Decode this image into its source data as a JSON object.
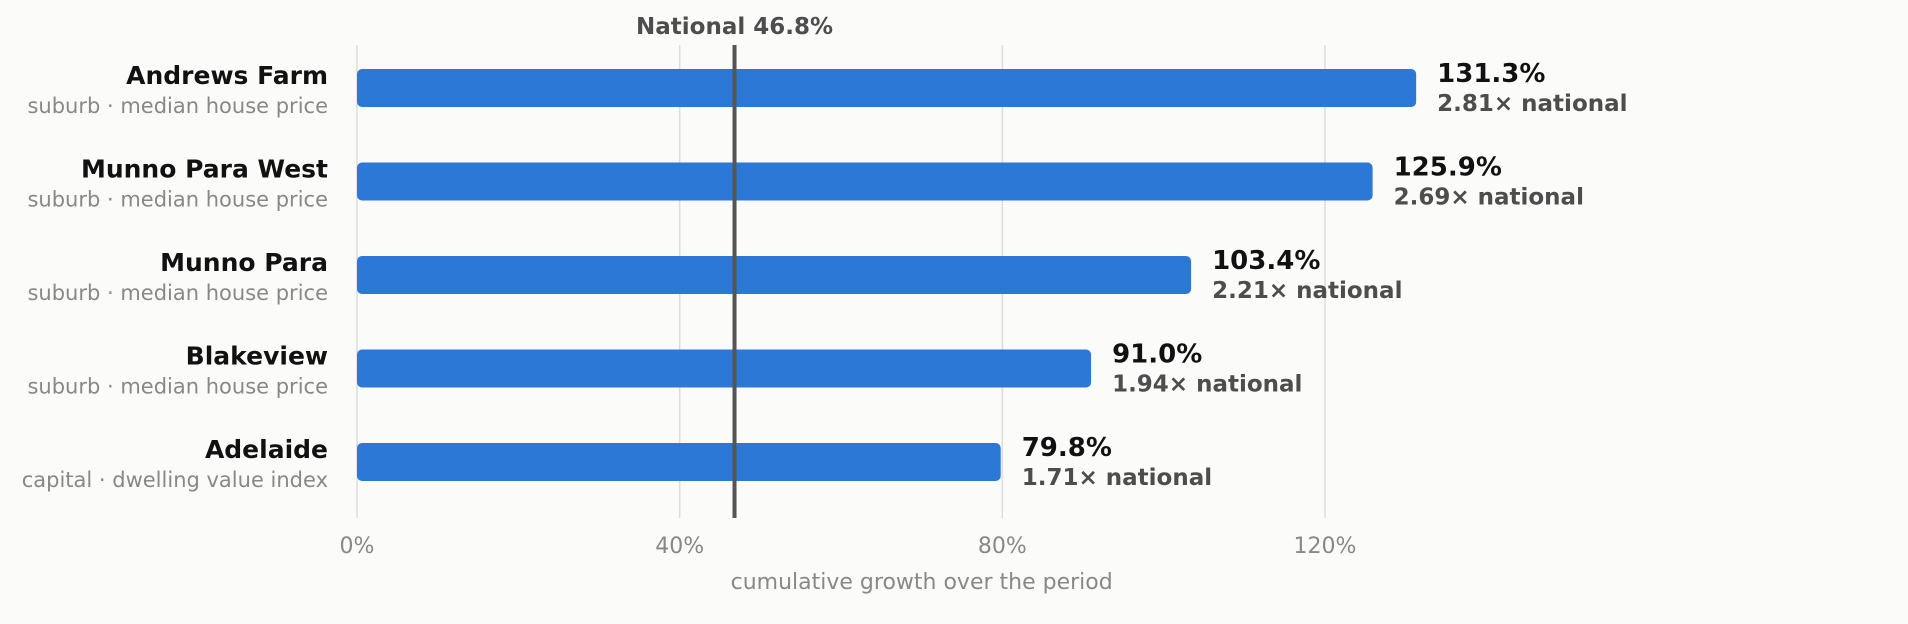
{
  "chart_data": {
    "type": "bar",
    "orientation": "horizontal",
    "categories": [
      "Andrews Farm",
      "Munno Para West",
      "Munno Para",
      "Blakeview",
      "Adelaide"
    ],
    "subtitles": [
      "suburb · median house price",
      "suburb · median house price",
      "suburb · median house price",
      "suburb · median house price",
      "capital · dwelling value index"
    ],
    "values": [
      131.3,
      125.9,
      103.4,
      91.0,
      79.8
    ],
    "value_labels": [
      "131.3%",
      "125.9%",
      "103.4%",
      "91.0%",
      "79.8%"
    ],
    "multiple_labels": [
      "2.81× national",
      "2.69× national",
      "2.21× national",
      "1.94× national",
      "1.71× national"
    ],
    "reference": {
      "label": "National 46.8%",
      "value": 46.8
    },
    "xlabel": "cumulative growth over the period",
    "xlim": [
      0,
      140
    ],
    "xticks": [
      0,
      40,
      80,
      120
    ],
    "xtick_labels": [
      "0%",
      "40%",
      "80%",
      "120%"
    ],
    "grid": true,
    "legend": "none",
    "colors": {
      "bar": "#2b78d6",
      "reference_line": "#555555",
      "grid": "#dddddd",
      "muted_text": "#888888",
      "dark_text": "#111111",
      "secondary_text": "#4d4d4d",
      "background": "#fbfbf9"
    }
  }
}
